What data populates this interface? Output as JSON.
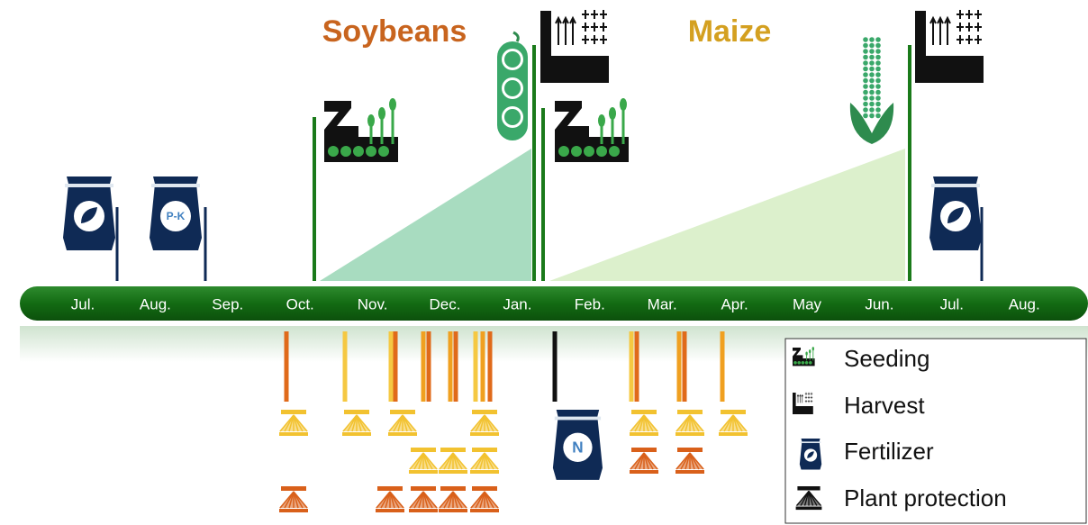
{
  "titles": {
    "soybeans": "Soybeans",
    "maize": "Maize"
  },
  "timeline": {
    "months": [
      "Jul.",
      "Aug.",
      "Sep.",
      "Oct.",
      "Nov.",
      "Dec.",
      "Jan.",
      "Feb.",
      "Mar.",
      "Apr.",
      "May",
      "Jun.",
      "Jul.",
      "Aug."
    ]
  },
  "fertilizer_bags": {
    "pk": "P-K",
    "n": "N"
  },
  "legend": {
    "items": [
      {
        "label": "Seeding"
      },
      {
        "label": "Harvest"
      },
      {
        "label": "Fertilizer"
      },
      {
        "label": "Plant protection"
      }
    ]
  }
}
